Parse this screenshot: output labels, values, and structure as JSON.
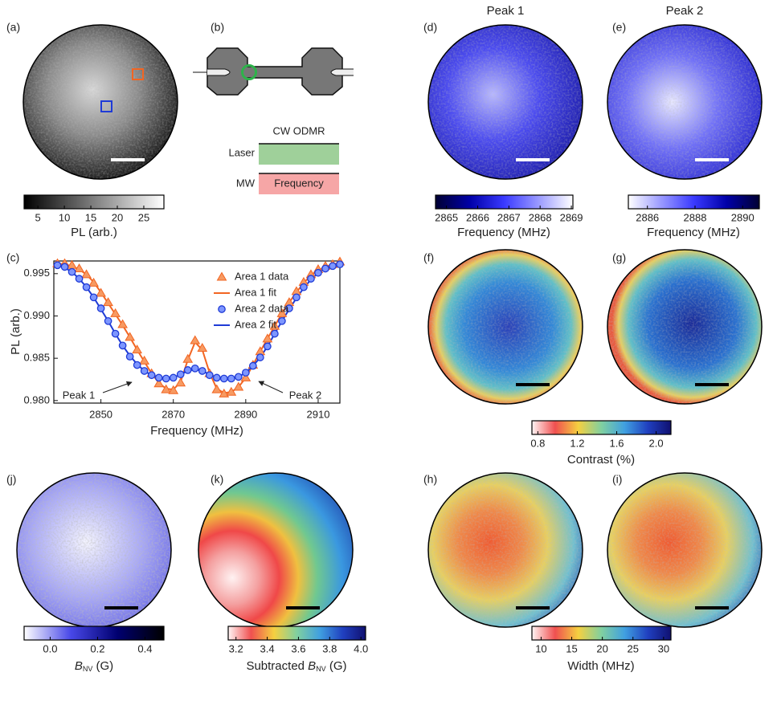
{
  "panel_labels": {
    "a": "(a)",
    "b": "(b)",
    "c": "(c)",
    "d": "(d)",
    "e": "(e)",
    "f": "(f)",
    "g": "(g)",
    "h": "(h)",
    "i": "(i)",
    "j": "(j)",
    "k": "(k)"
  },
  "column_titles": [
    "Peak 1",
    "Peak 2"
  ],
  "schematic": {
    "title": "CW ODMR",
    "laser": "Laser",
    "mw": "MW",
    "frequency": "Frequency"
  },
  "chart_data": {
    "type": "line",
    "xlabel": "Frequency (MHz)",
    "ylabel": "PL (arb.)",
    "x": [
      2838,
      2840,
      2842,
      2844,
      2846,
      2848,
      2850,
      2852,
      2854,
      2856,
      2858,
      2860,
      2862,
      2864,
      2866,
      2868,
      2870,
      2872,
      2874,
      2876,
      2878,
      2880,
      2882,
      2884,
      2886,
      2888,
      2890,
      2892,
      2894,
      2896,
      2898,
      2900,
      2902,
      2904,
      2906,
      2908,
      2910,
      2912,
      2914,
      2916
    ],
    "xlim": [
      2837,
      2916
    ],
    "xticks": [
      2850,
      2870,
      2890,
      2910
    ],
    "ylim": [
      0.9797,
      0.9965
    ],
    "yticks": [
      {
        "value": 0.98,
        "label": "0.980"
      },
      0.985,
      {
        "value": 0.99,
        "label": "0.990"
      },
      0.995
    ],
    "series": [
      {
        "name": "Area 1 data",
        "color": "#f26522",
        "style": "triangle",
        "values": [
          0.9962,
          0.9962,
          0.996,
          0.9956,
          0.9949,
          0.9939,
          0.9927,
          0.9916,
          0.9903,
          0.989,
          0.9875,
          0.986,
          0.9847,
          0.9832,
          0.982,
          0.9813,
          0.9812,
          0.9821,
          0.9849,
          0.9871,
          0.9862,
          0.9832,
          0.9813,
          0.9808,
          0.981,
          0.9816,
          0.9827,
          0.9842,
          0.9858,
          0.9873,
          0.9888,
          0.9903,
          0.9916,
          0.9929,
          0.994,
          0.9949,
          0.9955,
          0.9959,
          0.9961,
          0.9964
        ]
      },
      {
        "name": "Area 1 fit",
        "color": "#f26522",
        "style": "line",
        "values": [
          0.9962,
          0.9961,
          0.9959,
          0.9955,
          0.9949,
          0.994,
          0.9928,
          0.9915,
          0.9902,
          0.9889,
          0.9875,
          0.986,
          0.9846,
          0.9832,
          0.9821,
          0.9814,
          0.9813,
          0.9822,
          0.9848,
          0.9869,
          0.986,
          0.9833,
          0.9814,
          0.9809,
          0.981,
          0.9816,
          0.9827,
          0.9842,
          0.9858,
          0.9873,
          0.9888,
          0.9903,
          0.9916,
          0.9928,
          0.9939,
          0.9948,
          0.9954,
          0.9958,
          0.9961,
          0.9963
        ]
      },
      {
        "name": "Area 2 data",
        "color": "#1f3bd6",
        "style": "circle",
        "values": [
          0.996,
          0.9958,
          0.9952,
          0.9944,
          0.9934,
          0.9922,
          0.9909,
          0.9894,
          0.9879,
          0.9865,
          0.9852,
          0.9842,
          0.9835,
          0.983,
          0.9827,
          0.9826,
          0.9827,
          0.9831,
          0.9836,
          0.9838,
          0.9835,
          0.983,
          0.9827,
          0.9826,
          0.9826,
          0.9828,
          0.9833,
          0.9841,
          0.9851,
          0.9864,
          0.9879,
          0.9894,
          0.9909,
          0.9922,
          0.9934,
          0.9944,
          0.9951,
          0.9956,
          0.9959,
          0.9961
        ]
      },
      {
        "name": "Area 2 fit",
        "color": "#1f3bd6",
        "style": "line",
        "values": [
          0.996,
          0.9957,
          0.9952,
          0.9944,
          0.9934,
          0.9922,
          0.9908,
          0.9894,
          0.9879,
          0.9865,
          0.9853,
          0.9843,
          0.9835,
          0.983,
          0.9827,
          0.9826,
          0.9827,
          0.9831,
          0.9835,
          0.9837,
          0.9835,
          0.9831,
          0.9827,
          0.9826,
          0.9826,
          0.9828,
          0.9833,
          0.9841,
          0.9851,
          0.9864,
          0.9879,
          0.9894,
          0.9908,
          0.9921,
          0.9933,
          0.9943,
          0.9951,
          0.9956,
          0.9959,
          0.9961
        ]
      }
    ],
    "annotations": [
      "Peak 1",
      "Peak 2"
    ]
  },
  "colorbars": [
    {
      "label": "PL (arb.)",
      "lim": [
        2.4,
        28.8
      ],
      "ticks": [
        5,
        10,
        15,
        20,
        25
      ],
      "colors": [
        "#000000",
        "#ffffff"
      ]
    },
    {
      "label": "Frequency (MHz)",
      "lim": [
        2864.65,
        2869.05
      ],
      "ticks": [
        2865,
        2866,
        2867,
        2868,
        2869
      ],
      "colors": [
        "#000033",
        "#0000a8",
        "#3a3aff",
        "#9a9aff",
        "#ffffff"
      ]
    },
    {
      "label": "Frequency (MHz)",
      "lim": [
        2885.2,
        2890.7
      ],
      "ticks": [
        2886,
        2888,
        2890
      ],
      "colors": [
        "#ffffff",
        "#9a9aff",
        "#3a3aff",
        "#0000a8",
        "#000033"
      ]
    },
    {
      "label": "Contrast (%)",
      "lim": [
        0.74,
        2.15
      ],
      "ticks": [
        0.8,
        1.2,
        1.6,
        {
          "value": 2,
          "label": "2.0"
        }
      ],
      "colors": [
        "#fff5f5",
        "#f05050",
        "#f5d040",
        "#80d0a0",
        "#40a0e0",
        "#2040c0",
        "#101070"
      ]
    },
    {
      "label": [
        "B",
        "NV",
        " (G)"
      ],
      "lim": [
        -0.11,
        0.48
      ],
      "ticks": [
        {
          "value": 0,
          "label": "0.0"
        },
        0.2,
        0.4
      ],
      "colors": [
        "#ffffff",
        "#4848e8",
        "#000070",
        "#000000"
      ]
    },
    {
      "label": [
        "Subtracted ",
        "B",
        "NV",
        " (G)"
      ],
      "lim": [
        3.15,
        4.03
      ],
      "ticks": [
        3.2,
        3.4,
        3.6,
        3.8,
        {
          "value": 4,
          "label": "4.0"
        }
      ],
      "colors": [
        "#fff5f5",
        "#f05050",
        "#f5d040",
        "#80d0a0",
        "#40a0e0",
        "#2040c0",
        "#101070"
      ]
    },
    {
      "label": "Width (MHz)",
      "lim": [
        8.5,
        31.2
      ],
      "ticks": [
        10,
        15,
        20,
        25,
        30
      ],
      "colors": [
        "#fff5f5",
        "#f05050",
        "#f5d040",
        "#80d0a0",
        "#40a0e0",
        "#2040c0",
        "#101070"
      ]
    }
  ]
}
